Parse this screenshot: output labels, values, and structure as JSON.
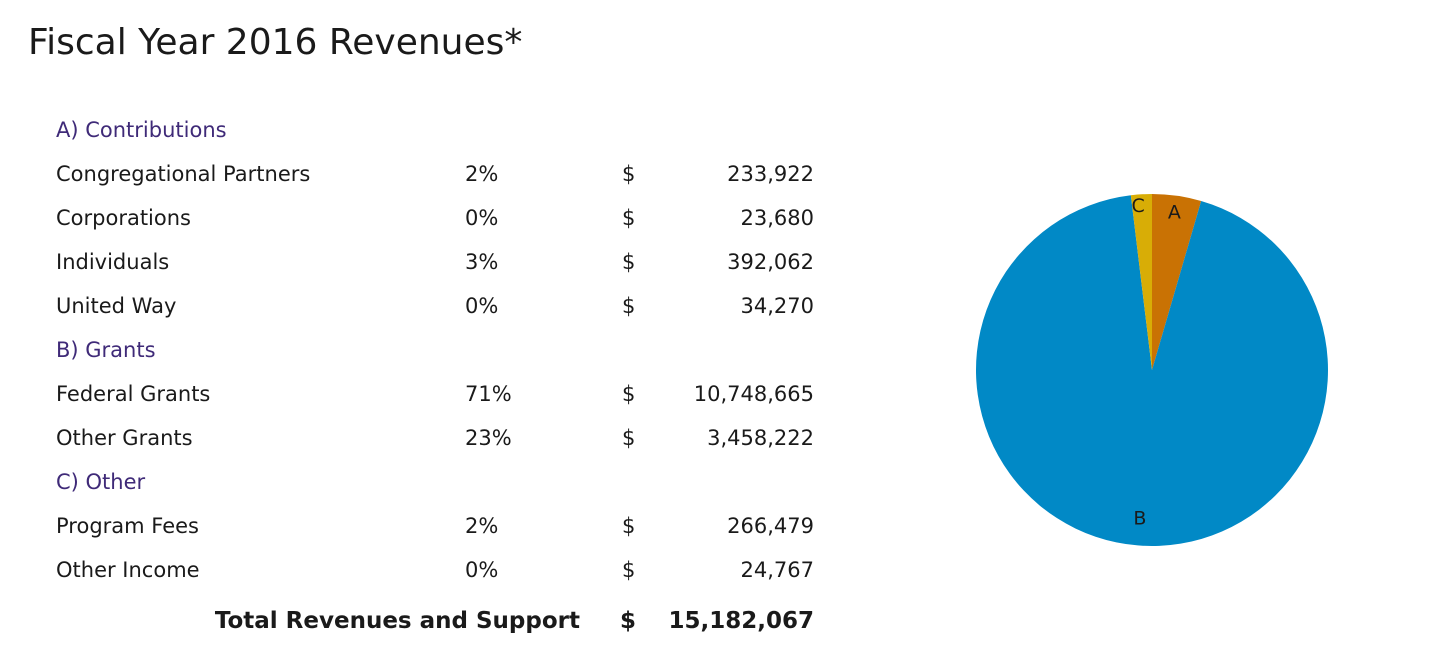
{
  "title": "Fiscal Year 2016 Revenues*",
  "table": {
    "rows": [
      {
        "type": "section",
        "label": "A) Contributions"
      },
      {
        "type": "item",
        "label": "Congregational Partners",
        "pct": "2%",
        "currency": "$",
        "amount": "233,922"
      },
      {
        "type": "item",
        "label": "Corporations",
        "pct": "0%",
        "currency": "$",
        "amount": "23,680"
      },
      {
        "type": "item",
        "label": "Individuals",
        "pct": "3%",
        "currency": "$",
        "amount": "392,062"
      },
      {
        "type": "item",
        "label": "United Way",
        "pct": "0%",
        "currency": "$",
        "amount": "34,270"
      },
      {
        "type": "section",
        "label": "B) Grants"
      },
      {
        "type": "item",
        "label": "Federal Grants",
        "pct": "71%",
        "currency": "$",
        "amount": "10,748,665"
      },
      {
        "type": "item",
        "label": "Other Grants",
        "pct": "23%",
        "currency": "$",
        "amount": "3,458,222"
      },
      {
        "type": "section",
        "label": "C) Other"
      },
      {
        "type": "item",
        "label": "Program Fees",
        "pct": "2%",
        "currency": "$",
        "amount": "266,479"
      },
      {
        "type": "item",
        "label": "Other Income",
        "pct": "0%",
        "currency": "$",
        "amount": "24,767"
      }
    ],
    "total": {
      "label": "Total Revenues and Support",
      "currency": "$",
      "amount": "15,182,067"
    }
  },
  "colors": {
    "section_text": "#3f2a78",
    "slice_a": "#c97204",
    "slice_b": "#0189c6",
    "slice_c": "#d8ad06"
  },
  "chart_data": {
    "type": "pie",
    "start_angle_deg": 0,
    "direction": "clockwise",
    "slices": [
      {
        "label": "A",
        "value": 683934,
        "color": "#c97204"
      },
      {
        "label": "B",
        "value": 14206887,
        "color": "#0189c6"
      },
      {
        "label": "C",
        "value": 291246,
        "color": "#d8ad06"
      }
    ]
  }
}
